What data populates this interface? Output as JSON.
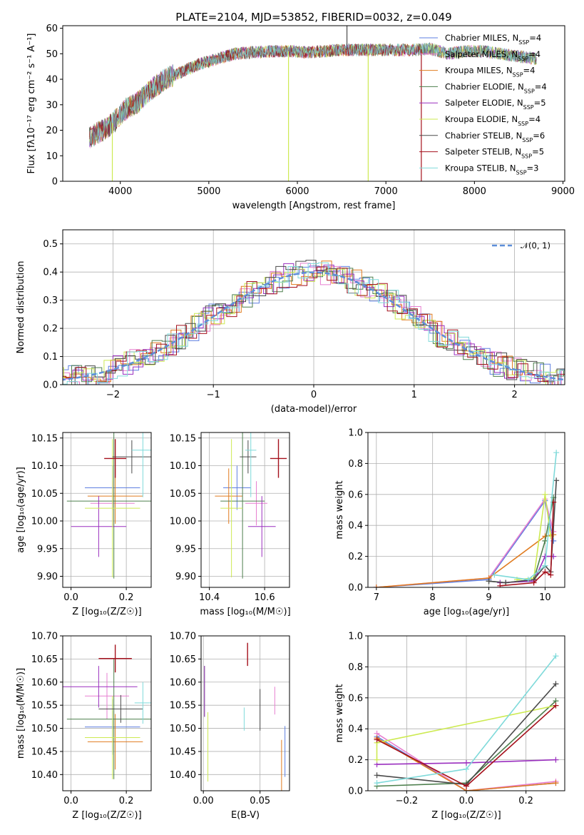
{
  "title": "PLATE=2104, MJD=53852, FIBERID=0032, z=0.049",
  "colors": {
    "Chabrier MILES": "#5e7fe0",
    "Salpeter MILES": "#e77fd0",
    "Kroupa MILES": "#e07b1f",
    "Chabrier ELODIE": "#4d7f4d",
    "Salpeter ELODIE": "#9a2fbf",
    "Kroupa ELODIE": "#cdea52",
    "Chabrier STELIB": "#4a4a4a",
    "Salpeter STELIB": "#a5111c",
    "Kroupa STELIB": "#7fdada"
  },
  "chart_data": [
    {
      "id": "spectrum",
      "type": "line",
      "xlabel": "wavelength [Angstrom, rest frame]",
      "ylabel": "Flux [fλ10⁻¹⁷ erg cm⁻² s⁻¹ A⁻¹]",
      "xlim": [
        3350,
        9020
      ],
      "ylim": [
        0,
        61
      ],
      "xticks": [
        4000,
        5000,
        6000,
        7000,
        8000,
        9000
      ],
      "yticks": [
        0,
        10,
        20,
        30,
        40,
        50,
        60
      ],
      "grid": false,
      "legend_position": "right",
      "legend": [
        {
          "label": "Chabrier MILES, N",
          "sub": "SSP",
          "suffix": "=4"
        },
        {
          "label": "Salpeter MILES, N",
          "sub": "SSP",
          "suffix": "=4"
        },
        {
          "label": "Kroupa MILES, N",
          "sub": "SSP",
          "suffix": "=4"
        },
        {
          "label": "Chabrier ELODIE, N",
          "sub": "SSP",
          "suffix": "=4"
        },
        {
          "label": "Salpeter ELODIE, N",
          "sub": "SSP",
          "suffix": "=5"
        },
        {
          "label": "Kroupa ELODIE, N",
          "sub": "SSP",
          "suffix": "=4"
        },
        {
          "label": "Chabrier STELIB, N",
          "sub": "SSP",
          "suffix": "=6"
        },
        {
          "label": "Salpeter STELIB, N",
          "sub": "SSP",
          "suffix": "=5"
        },
        {
          "label": "Kroupa STELIB, N",
          "sub": "SSP",
          "suffix": "=3"
        }
      ],
      "continuum": {
        "x": [
          3650,
          3750,
          3850,
          3950,
          4050,
          4200,
          4350,
          4500,
          4700,
          4900,
          5100,
          5300,
          5500,
          5700,
          5900,
          6100,
          6300,
          6500,
          6700,
          6900,
          7100,
          7300,
          7500,
          7700,
          7900,
          8100,
          8300,
          8500,
          8700
        ],
        "y": [
          17,
          19,
          21,
          24,
          28,
          31,
          36,
          40,
          43,
          46,
          48,
          50,
          50.5,
          51,
          51,
          50.5,
          51,
          51.5,
          51.5,
          51.5,
          51.5,
          51.5,
          52,
          50,
          51,
          51,
          50,
          49,
          48
        ]
      },
      "spikes": [
        {
          "series": "Kroupa ELODIE",
          "x": 3910,
          "y": 0
        },
        {
          "series": "Kroupa ELODIE",
          "x": 5900,
          "y": 0
        },
        {
          "series": "Kroupa ELODIE",
          "x": 6800,
          "y": 0
        },
        {
          "series": "Salpeter STELIB",
          "x": 7400,
          "y": 0
        },
        {
          "series": "Chabrier STELIB",
          "x": 6560,
          "y": 61
        }
      ]
    },
    {
      "id": "residuals",
      "type": "histogram",
      "xlabel": "(data-model)/error",
      "ylabel": "Normed distribution",
      "xlim": [
        -2.5,
        2.5
      ],
      "ylim": [
        0,
        0.55
      ],
      "xticks": [
        -2,
        -1,
        0,
        1,
        2
      ],
      "yticks": [
        0.0,
        0.1,
        0.2,
        0.3,
        0.4,
        0.5
      ],
      "grid": true,
      "legend": [
        {
          "label": "𝒩(0, 1)",
          "style": "dashed",
          "color": "#5e8fd9"
        }
      ],
      "legend_position": "top-right",
      "bin_width": 0.1
    },
    {
      "id": "age-vs-Z",
      "type": "errorbar",
      "xlabel": "Z [log₁₀(Z/Z☉)]",
      "ylabel": "age  [log₁₀(age/yr)]",
      "xlim": [
        -0.03,
        0.29
      ],
      "ylim": [
        9.88,
        10.16
      ],
      "xticks": [
        0.0,
        0.2
      ],
      "yticks": [
        9.9,
        9.95,
        10.0,
        10.05,
        10.1,
        10.15
      ],
      "grid": true,
      "points": [
        {
          "series": "Chabrier MILES",
          "x": 0.15,
          "xerr": 0.1,
          "y": 10.06,
          "yerr": 0.04
        },
        {
          "series": "Salpeter MILES",
          "x": 0.15,
          "xerr": 0.08,
          "y": 10.032,
          "yerr": 0.04
        },
        {
          "series": "Kroupa MILES",
          "x": 0.16,
          "xerr": 0.1,
          "y": 10.045,
          "yerr": 0.05
        },
        {
          "series": "Chabrier ELODIE",
          "x": 0.155,
          "xerr": 0.17,
          "y": 10.036,
          "yerr": 0.14
        },
        {
          "series": "Salpeter ELODIE",
          "x": 0.1,
          "xerr": 0.1,
          "y": 9.99,
          "yerr": 0.055
        },
        {
          "series": "Kroupa ELODIE",
          "x": 0.15,
          "xerr": 0.1,
          "y": 10.023,
          "yerr": 0.125
        },
        {
          "series": "Chabrier STELIB",
          "x": 0.22,
          "xerr": 0.07,
          "y": 10.116,
          "yerr": 0.03
        },
        {
          "series": "Salpeter STELIB",
          "x": 0.16,
          "xerr": 0.04,
          "y": 10.113,
          "yerr": 0.035
        },
        {
          "series": "Kroupa STELIB",
          "x": 0.26,
          "xerr": 0.04,
          "y": 10.128,
          "yerr": 0.085
        }
      ]
    },
    {
      "id": "age-vs-mass",
      "type": "errorbar",
      "xlabel": "mass [log₁₀(M/M☉)]",
      "ylabel": "",
      "xlim": [
        10.37,
        10.69
      ],
      "ylim": [
        9.88,
        10.16
      ],
      "xticks": [
        10.4,
        10.6
      ],
      "yticks": [
        9.9,
        9.95,
        10.0,
        10.05,
        10.1,
        10.15
      ],
      "grid": true,
      "points": [
        {
          "series": "Chabrier MILES",
          "x": 10.5,
          "xerr": 0.05,
          "y": 10.06,
          "yerr": 0.04
        },
        {
          "series": "Salpeter MILES",
          "x": 10.57,
          "xerr": 0.04,
          "y": 10.032,
          "yerr": 0.04
        },
        {
          "series": "Kroupa MILES",
          "x": 10.47,
          "xerr": 0.05,
          "y": 10.045,
          "yerr": 0.05
        },
        {
          "series": "Chabrier ELODIE",
          "x": 10.52,
          "xerr": 0.08,
          "y": 10.036,
          "yerr": 0.14
        },
        {
          "series": "Salpeter ELODIE",
          "x": 10.59,
          "xerr": 0.05,
          "y": 9.99,
          "yerr": 0.055
        },
        {
          "series": "Kroupa ELODIE",
          "x": 10.48,
          "xerr": 0.04,
          "y": 10.023,
          "yerr": 0.125
        },
        {
          "series": "Chabrier STELIB",
          "x": 10.54,
          "xerr": 0.03,
          "y": 10.116,
          "yerr": 0.03
        },
        {
          "series": "Salpeter STELIB",
          "x": 10.65,
          "xerr": 0.03,
          "y": 10.113,
          "yerr": 0.035
        },
        {
          "series": "Kroupa STELIB",
          "x": 10.55,
          "xerr": 0.02,
          "y": 10.128,
          "yerr": 0.085
        }
      ]
    },
    {
      "id": "massweight-vs-age",
      "type": "line",
      "xlabel": "age  [log₁₀(age/yr)]",
      "ylabel": "mass weight",
      "xlim": [
        6.85,
        10.35
      ],
      "ylim": [
        0,
        1.0
      ],
      "xticks": [
        7,
        8,
        9,
        10
      ],
      "yticks": [
        0.0,
        0.2,
        0.4,
        0.6,
        0.8,
        1.0
      ],
      "grid": true,
      "series": [
        {
          "name": "Chabrier MILES",
          "x": [
            7.0,
            9.0,
            10.0,
            10.15
          ],
          "y": [
            0.0,
            0.05,
            0.56,
            0.3
          ]
        },
        {
          "name": "Salpeter MILES",
          "x": [
            7.0,
            9.0,
            10.0,
            10.15
          ],
          "y": [
            0.0,
            0.06,
            0.57,
            0.36
          ]
        },
        {
          "name": "Kroupa MILES",
          "x": [
            7.0,
            9.0,
            10.0,
            10.15
          ],
          "y": [
            0.0,
            0.06,
            0.33,
            0.34
          ]
        },
        {
          "name": "Chabrier ELODIE",
          "x": [
            9.0,
            9.3,
            9.8,
            10.0,
            10.15
          ],
          "y": [
            0.04,
            0.03,
            0.05,
            0.3,
            0.58
          ]
        },
        {
          "name": "Salpeter ELODIE",
          "x": [
            9.2,
            9.8,
            10.0,
            10.15
          ],
          "y": [
            0.03,
            0.04,
            0.2,
            0.2
          ]
        },
        {
          "name": "Kroupa ELODIE",
          "x": [
            9.5,
            9.8,
            10.0,
            10.1
          ],
          "y": [
            0.05,
            0.06,
            0.6,
            0.33
          ]
        },
        {
          "name": "Chabrier STELIB",
          "x": [
            9.0,
            9.3,
            9.8,
            10.0,
            10.1,
            10.2
          ],
          "y": [
            0.04,
            0.03,
            0.05,
            0.14,
            0.1,
            0.69
          ]
        },
        {
          "name": "Salpeter STELIB",
          "x": [
            9.2,
            9.8,
            10.0,
            10.1,
            10.15
          ],
          "y": [
            0.01,
            0.03,
            0.1,
            0.08,
            0.55
          ]
        },
        {
          "name": "Kroupa STELIB",
          "x": [
            9.1,
            9.7,
            10.0,
            10.2
          ],
          "y": [
            0.08,
            0.05,
            0.14,
            0.87
          ]
        }
      ]
    },
    {
      "id": "mass-vs-Z",
      "type": "errorbar",
      "xlabel": "Z [log₁₀(Z/Z☉)]",
      "ylabel": "mass [log₁₀(M/M☉)]",
      "xlim": [
        -0.03,
        0.29
      ],
      "ylim": [
        10.365,
        10.7
      ],
      "xticks": [
        0.0,
        0.2
      ],
      "yticks": [
        10.4,
        10.45,
        10.5,
        10.55,
        10.6,
        10.65,
        10.7
      ],
      "grid": true,
      "points": [
        {
          "series": "Chabrier MILES",
          "x": 0.15,
          "xerr": 0.1,
          "y": 10.503,
          "yerr": 0.06
        },
        {
          "series": "Salpeter MILES",
          "x": 0.13,
          "xerr": 0.08,
          "y": 10.57,
          "yerr": 0.05
        },
        {
          "series": "Kroupa MILES",
          "x": 0.16,
          "xerr": 0.1,
          "y": 10.471,
          "yerr": 0.06
        },
        {
          "series": "Chabrier ELODIE",
          "x": 0.155,
          "xerr": 0.17,
          "y": 10.52,
          "yerr": 0.13
        },
        {
          "series": "Salpeter ELODIE",
          "x": 0.1,
          "xerr": 0.14,
          "y": 10.59,
          "yerr": 0.045
        },
        {
          "series": "Kroupa ELODIE",
          "x": 0.15,
          "xerr": 0.1,
          "y": 10.48,
          "yerr": 0.09
        },
        {
          "series": "Chabrier STELIB",
          "x": 0.18,
          "xerr": 0.08,
          "y": 10.542,
          "yerr": 0.03
        },
        {
          "series": "Salpeter STELIB",
          "x": 0.16,
          "xerr": 0.06,
          "y": 10.651,
          "yerr": 0.03
        },
        {
          "series": "Kroupa STELIB",
          "x": 0.26,
          "xerr": 0.03,
          "y": 10.555,
          "yerr": 0.045
        }
      ]
    },
    {
      "id": "mass-vs-ebv",
      "type": "errorbar",
      "xlabel": "E(B-V)",
      "ylabel": "",
      "xlim": [
        -0.002,
        0.076
      ],
      "ylim": [
        10.365,
        10.7
      ],
      "xticks": [
        0.0,
        0.05
      ],
      "yticks": [
        10.4,
        10.45,
        10.5,
        10.55,
        10.6,
        10.65,
        10.7
      ],
      "grid": true,
      "points": [
        {
          "series": "Chabrier MILES",
          "x": 0.072,
          "xerr": 0,
          "y": 10.45,
          "yerr": 0.055
        },
        {
          "series": "Salpeter MILES",
          "x": 0.063,
          "xerr": 0,
          "y": 10.56,
          "yerr": 0.03
        },
        {
          "series": "Kroupa MILES",
          "x": 0.069,
          "xerr": 0,
          "y": 10.41,
          "yerr": 0.065
        },
        {
          "series": "Chabrier ELODIE",
          "x": 0.001,
          "xerr": 0,
          "y": 10.58,
          "yerr": 0.055
        },
        {
          "series": "Salpeter ELODIE",
          "x": 0.001,
          "xerr": 0,
          "y": 10.58,
          "yerr": 0.055
        },
        {
          "series": "Kroupa ELODIE",
          "x": 0.004,
          "xerr": 0,
          "y": 10.46,
          "yerr": 0.075
        },
        {
          "series": "Chabrier STELIB",
          "x": 0.05,
          "xerr": 0,
          "y": 10.54,
          "yerr": 0.045
        },
        {
          "series": "Salpeter STELIB",
          "x": 0.039,
          "xerr": 0,
          "y": 10.66,
          "yerr": 0.025
        },
        {
          "series": "Kroupa STELIB",
          "x": 0.036,
          "xerr": 0,
          "y": 10.52,
          "yerr": 0.025
        }
      ]
    },
    {
      "id": "massweight-vs-Z",
      "type": "line",
      "xlabel": "Z [log₁₀(Z/Z☉)]",
      "ylabel": "mass weight",
      "xlim": [
        -0.33,
        0.33
      ],
      "ylim": [
        0,
        1.0
      ],
      "xticks": [
        -0.2,
        0.0,
        0.2
      ],
      "yticks": [
        0.0,
        0.2,
        0.4,
        0.6,
        0.8,
        1.0
      ],
      "grid": true,
      "series": [
        {
          "name": "Chabrier MILES",
          "x": [
            -0.3,
            0.0,
            0.3
          ],
          "y": [
            0.35,
            0.0,
            0.05
          ]
        },
        {
          "name": "Salpeter MILES",
          "x": [
            -0.3,
            0.0,
            0.3
          ],
          "y": [
            0.37,
            0.0,
            0.06
          ]
        },
        {
          "name": "Kroupa MILES",
          "x": [
            -0.3,
            0.0,
            0.3
          ],
          "y": [
            0.34,
            0.0,
            0.05
          ]
        },
        {
          "name": "Chabrier ELODIE",
          "x": [
            -0.3,
            0.0,
            0.3
          ],
          "y": [
            0.03,
            0.05,
            0.58
          ]
        },
        {
          "name": "Salpeter ELODIE",
          "x": [
            -0.3,
            0.0,
            0.3
          ],
          "y": [
            0.17,
            0.18,
            0.2
          ]
        },
        {
          "name": "Kroupa ELODIE",
          "x": [
            -0.3,
            -0.3,
            0.3
          ],
          "y": [
            0.2,
            0.31,
            0.55
          ]
        },
        {
          "name": "Chabrier STELIB",
          "x": [
            -0.3,
            0.0,
            0.3
          ],
          "y": [
            0.1,
            0.04,
            0.69
          ]
        },
        {
          "name": "Salpeter STELIB",
          "x": [
            -0.3,
            0.0,
            0.3
          ],
          "y": [
            0.33,
            0.03,
            0.55
          ]
        },
        {
          "name": "Kroupa STELIB",
          "x": [
            -0.3,
            0.0,
            0.3
          ],
          "y": [
            0.05,
            0.14,
            0.87
          ]
        }
      ]
    }
  ]
}
